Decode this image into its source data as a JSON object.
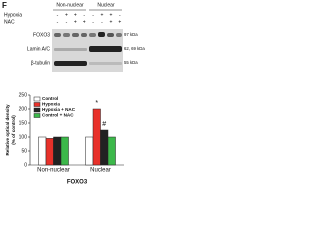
{
  "panel_label": "F",
  "blot": {
    "group_headers": [
      "Non-nuclear",
      "Nuclear"
    ],
    "conditions": [
      {
        "label": "Hypoxia",
        "signs": [
          "-",
          "+",
          "+",
          "-",
          "-",
          "+",
          "+",
          "-"
        ]
      },
      {
        "label": "NAC",
        "signs": [
          "-",
          "-",
          "+",
          "+",
          "-",
          "-",
          "+",
          "+"
        ]
      }
    ],
    "rows": [
      {
        "label": "FOXO3",
        "size": "97 kDa"
      },
      {
        "label": "Lamin A/C",
        "size": "62, 69 kDa"
      },
      {
        "label": "β-tubulin",
        "size": "55 kDa"
      }
    ]
  },
  "chart_data": {
    "type": "bar",
    "ylabel": [
      "Relative optical density",
      "(% of control)"
    ],
    "xlabel": "FOXO3",
    "categories": [
      "Non-nuclear",
      "Nuclear"
    ],
    "series": [
      {
        "name": "Control",
        "color": "#ffffff",
        "values": [
          100,
          100
        ]
      },
      {
        "name": "Hypoxia",
        "color": "#e8312a",
        "values": [
          95,
          200
        ]
      },
      {
        "name": "Hypoxia + NAC",
        "color": "#222222",
        "values": [
          100,
          125
        ]
      },
      {
        "name": "Control + NAC",
        "color": "#3cb84a",
        "values": [
          100,
          100
        ]
      }
    ],
    "annotations": [
      "*",
      "#"
    ],
    "ylim": [
      0,
      250
    ],
    "yticks": [
      0,
      50,
      100,
      150,
      200,
      250
    ]
  }
}
